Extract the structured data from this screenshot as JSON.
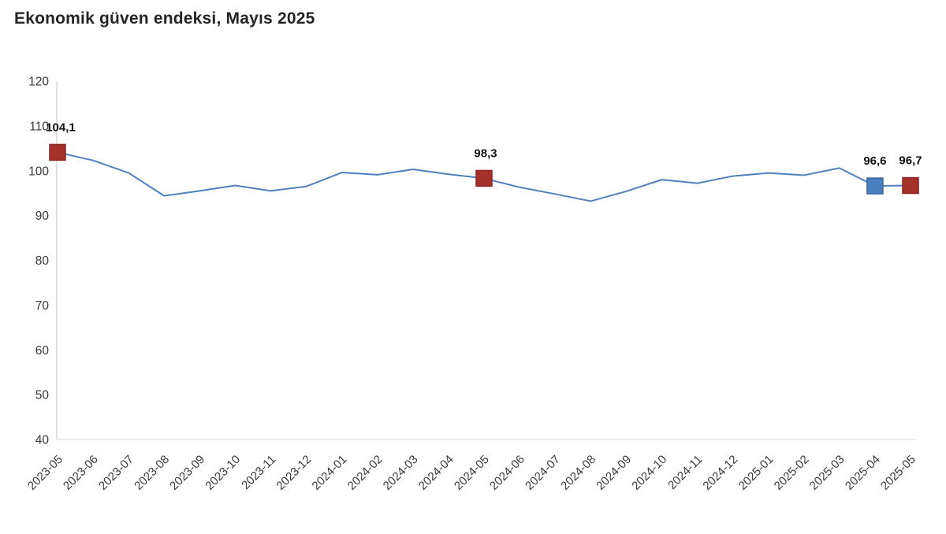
{
  "chart_data": {
    "type": "line",
    "title": "Ekonomik güven endeksi, Mayıs 2025",
    "x": [
      "2023-05",
      "2023-06",
      "2023-07",
      "2023-08",
      "2023-09",
      "2023-10",
      "2023-11",
      "2023-12",
      "2024-01",
      "2024-02",
      "2024-03",
      "2024-04",
      "2024-05",
      "2024-06",
      "2024-07",
      "2024-08",
      "2024-09",
      "2024-10",
      "2024-11",
      "2024-12",
      "2025-01",
      "2025-02",
      "2025-03",
      "2025-04",
      "2025-05"
    ],
    "values": [
      104.1,
      102.3,
      99.5,
      94.4,
      95.5,
      96.7,
      95.5,
      96.5,
      99.6,
      99.1,
      100.3,
      99.2,
      98.3,
      96.3,
      94.8,
      93.2,
      95.4,
      98.0,
      97.2,
      98.8,
      99.5,
      99.0,
      100.6,
      96.6,
      96.7
    ],
    "ylim": [
      40,
      120
    ],
    "ytick_step": 10,
    "grid": false,
    "legend": "none",
    "line_color": "#4f81bd",
    "axis_color": "#e3e3e3",
    "tick_color": "#3a3a3a",
    "label_color": "#111111",
    "labeled_points": [
      {
        "x": "2023-05",
        "label": "104,1",
        "color": "#a5312b",
        "stroke": "#8c2723",
        "dx": 4
      },
      {
        "x": "2024-05",
        "label": "98,3",
        "color": "#a5312b",
        "stroke": "#8c2723",
        "dx": 2
      },
      {
        "x": "2025-04",
        "label": "96,6",
        "color": "#4a7fbf",
        "stroke": "#38659c",
        "dx": 0
      },
      {
        "x": "2025-05",
        "label": "96,7",
        "color": "#a5312b",
        "stroke": "#8c2723",
        "dx": 0
      }
    ]
  }
}
